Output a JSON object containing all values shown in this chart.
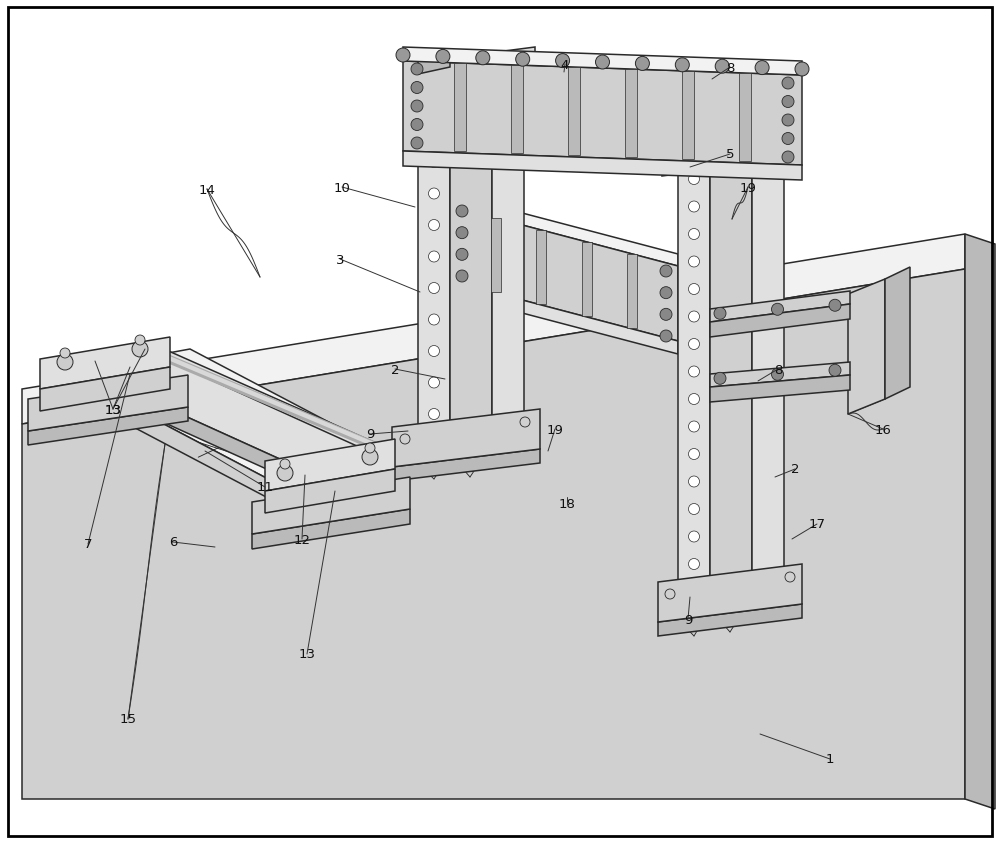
{
  "figsize": [
    10.0,
    8.45
  ],
  "dpi": 100,
  "bg_color": "#ffffff",
  "lc": "#2a2a2a",
  "fc_light": "#f0f0f0",
  "fc_mid": "#d8d8d8",
  "fc_dark": "#c0c0c0",
  "fc_darker": "#a8a8a8",
  "lw_main": 1.0,
  "lw_thin": 0.6
}
